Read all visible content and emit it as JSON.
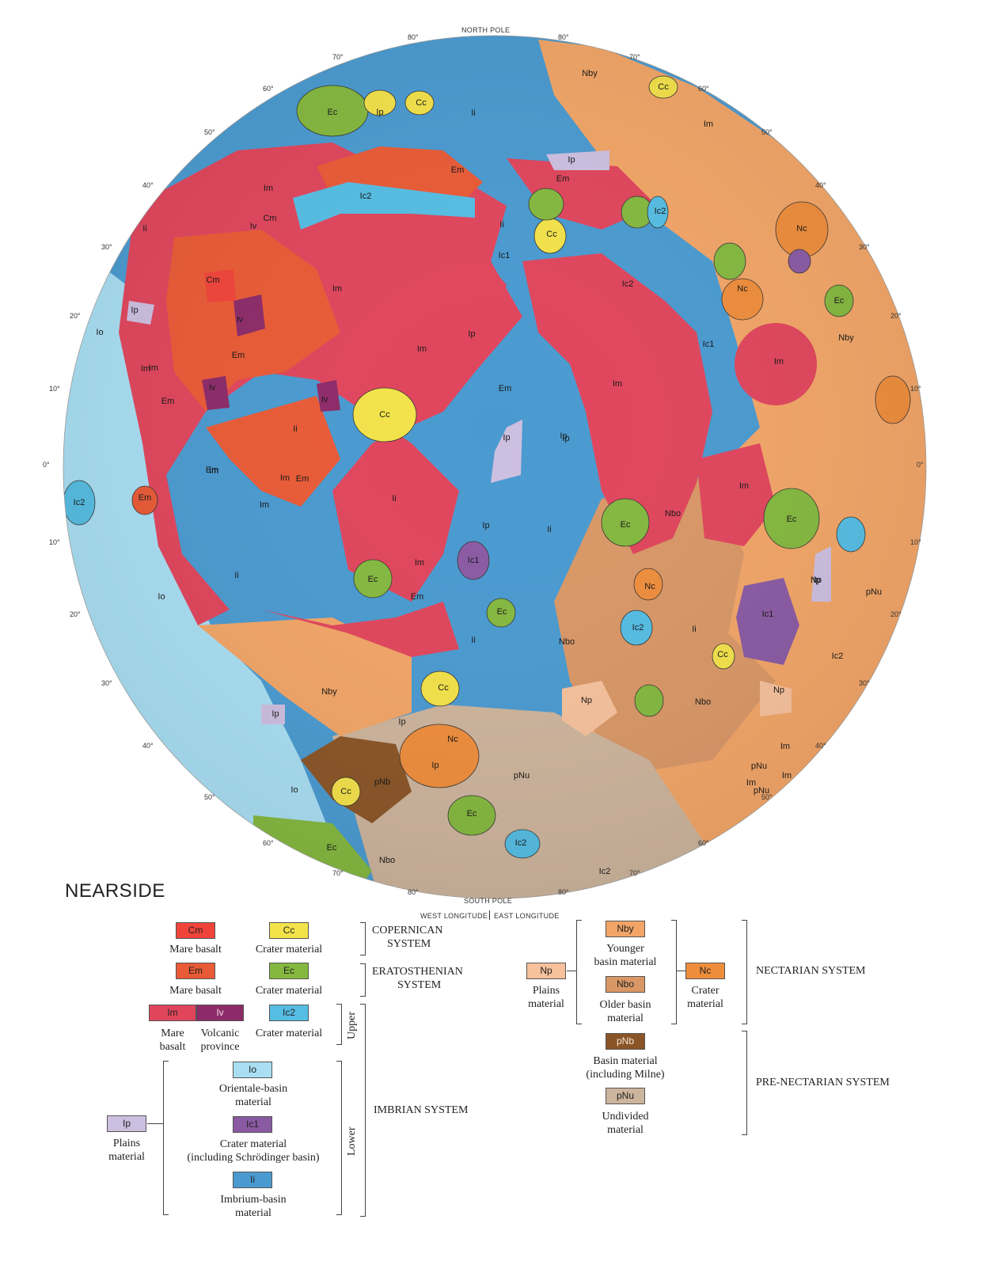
{
  "map": {
    "title": "NEARSIDE",
    "north_pole": "NORTH POLE",
    "south_pole": "SOUTH POLE",
    "west_longitude": "WEST LONGITUDE",
    "east_longitude": "EAST LONGITUDE",
    "lat_labels_left": [
      "80°",
      "70°",
      "60°",
      "50°",
      "40°",
      "30°",
      "20°",
      "10°",
      "0°",
      "10°",
      "20°",
      "30°",
      "40°",
      "50°",
      "60°",
      "70°",
      "80°"
    ],
    "unit_labels": [
      "Ec",
      "Ip",
      "Cc",
      "Ii",
      "Nby",
      "Cc",
      "Im",
      "Em",
      "Ic2",
      "Im",
      "Ip",
      "Em",
      "Cc",
      "Ic2",
      "Nc",
      "Iv",
      "Cm",
      "Ii",
      "Ic1",
      "Cm",
      "Im",
      "Ip",
      "Ic2",
      "Im",
      "Nc",
      "Im",
      "Ec",
      "Io",
      "Iv",
      "Em",
      "Im",
      "Ip",
      "Ii",
      "Im",
      "Nby",
      "Ic1",
      "Im",
      "Iv",
      "Em",
      "Iv",
      "Cc",
      "Em",
      "Im",
      "Ip",
      "Ip",
      "Em",
      "Im",
      "Ii",
      "Ip",
      "Ic2",
      "Em",
      "Em",
      "Im",
      "Ii",
      "Ip",
      "Ii",
      "Ec",
      "Nbo",
      "Ec",
      "Im",
      "Ic1",
      "Ec",
      "Nc",
      "Np",
      "Ip",
      "pNu",
      "Io",
      "Ii",
      "Em",
      "Im",
      "Ec",
      "Ic2",
      "Ii",
      "Ic1",
      "Ii",
      "Nbo",
      "Cc",
      "Ic2",
      "Nby",
      "Cc",
      "Ip",
      "Np",
      "Nbo",
      "Np",
      "Ip",
      "Nc",
      "Ip",
      "pNu",
      "Im",
      "pNu",
      "Im",
      "Io",
      "Cc",
      "pNb",
      "Ec",
      "Ic2",
      "Ec",
      "Nbo",
      "Ic2",
      "pNu",
      "Im"
    ]
  },
  "legend": {
    "items": [
      {
        "code": "Cm",
        "label": "Mare basalt",
        "color": "#f0443a"
      },
      {
        "code": "Cc",
        "label": "Crater material",
        "color": "#f3e24a"
      },
      {
        "code": "Em",
        "label": "Mare basalt",
        "color": "#e95a36"
      },
      {
        "code": "Ec",
        "label": "Crater material",
        "color": "#84b83f"
      },
      {
        "code": "Im",
        "label": "Mare basalt",
        "color": "#e0455c"
      },
      {
        "code": "Iv",
        "label": "Volcanic province",
        "color": "#8d2a68"
      },
      {
        "code": "Ic2",
        "label": "Crater material",
        "color": "#55bde3"
      },
      {
        "code": "Io",
        "label": "Orientale-basin material",
        "color": "#a9def3"
      },
      {
        "code": "Ic1",
        "label": "Crater material (including Schrödinger basin)",
        "color": "#8a5aa3"
      },
      {
        "code": "Ii",
        "label": "Imbrium-basin material",
        "color": "#4a9ad0"
      },
      {
        "code": "Ip",
        "label": "Plains material",
        "color": "#cdbfe0"
      },
      {
        "code": "Np",
        "label": "Plains material",
        "color": "#f6c19c"
      },
      {
        "code": "Nby",
        "label": "Younger basin material",
        "color": "#f2a567"
      },
      {
        "code": "Nbo",
        "label": "Older basin material",
        "color": "#d99766"
      },
      {
        "code": "Nc",
        "label": "Crater material",
        "color": "#ee8d3c"
      },
      {
        "code": "pNb",
        "label": "Basin material (including Milne)",
        "color": "#8a5526"
      },
      {
        "code": "pNu",
        "label": "Undivided material",
        "color": "#cdb49c"
      }
    ],
    "systems": {
      "copernican": "COPERNICAN SYSTEM",
      "eratosthenian": "ERATOSTHENIAN SYSTEM",
      "imbrian": "IMBRIAN SYSTEM",
      "nectarian": "NECTARIAN SYSTEM",
      "prenectarian": "PRE-NECTARIAN SYSTEM",
      "upper": "Upper",
      "lower": "Lower"
    },
    "copernican_l1": "COPERNICAN",
    "copernican_l2": "SYSTEM",
    "eratosthenian_l1": "ERATOSTHENIAN",
    "eratosthenian_l2": "SYSTEM",
    "lab": {
      "mare": "Mare",
      "basalt": "basalt",
      "volcanic": "Volcanic",
      "province": "province",
      "orientale1": "Orientale-basin",
      "orientale2": "material",
      "crater1": "Crater material",
      "crater2": "(including Schrödinger basin)",
      "imbrium1": "Imbrium-basin",
      "imbrium2": "material",
      "plains1": "Plains",
      "plains2": "material",
      "younger1": "Younger",
      "younger2": "basin material",
      "older1": "Older basin",
      "older2": "material",
      "craterm1": "Crater",
      "craterm2": "material",
      "basin1": "Basin material",
      "basin2": "(including Milne)",
      "undivided1": "Undivided",
      "undivided2": "material"
    }
  }
}
